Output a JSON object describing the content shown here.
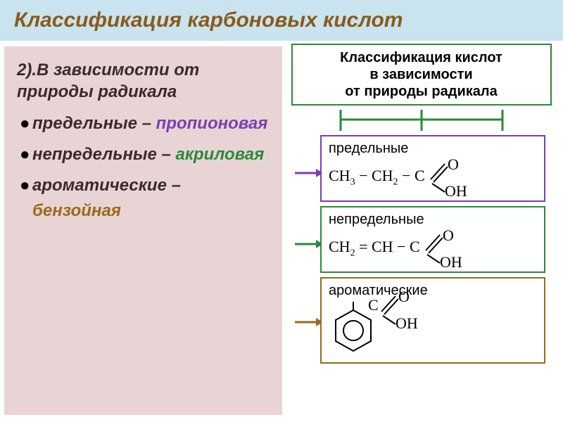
{
  "header": {
    "text": "Классификация карбоновых кислот",
    "bg_color": "#c9e3ef",
    "text_color": "#8a5a1a"
  },
  "left": {
    "bg_color": "#e8d4d5",
    "subheading": "2).В зависимости от природы радикала",
    "subheading_color": "#3a2a2a",
    "items": [
      {
        "label": "предельные –",
        "example": "пропионовая",
        "example_color": "#7a3fb0"
      },
      {
        "label": "непредельные –",
        "example": "акриловая",
        "example_color": "#2a8a3a"
      },
      {
        "label": "ароматические –",
        "example": "бензойная",
        "example_color": "#9a6a1a"
      }
    ]
  },
  "right": {
    "title_lines": [
      "Классификация кислот",
      "в зависимости",
      "от природы радикала"
    ],
    "title_border": "#2a8a3a",
    "connector_color": "#2a8a3a",
    "categories": [
      {
        "label": "предельные",
        "border_color": "#7a3fb0",
        "arrow_color": "#7a3fb0",
        "chain_html": "CH<span class='sub'>3</span> − CH<span class='sub'>2</span> − C"
      },
      {
        "label": "непредельные",
        "border_color": "#2a8a3a",
        "arrow_color": "#2a8a3a",
        "chain_html": "CH<span class='sub'>2</span> = CH − C"
      },
      {
        "label": "ароматические",
        "border_color": "#9a6a1a",
        "arrow_color": "#9a6a1a",
        "is_benzene": true
      }
    ]
  }
}
